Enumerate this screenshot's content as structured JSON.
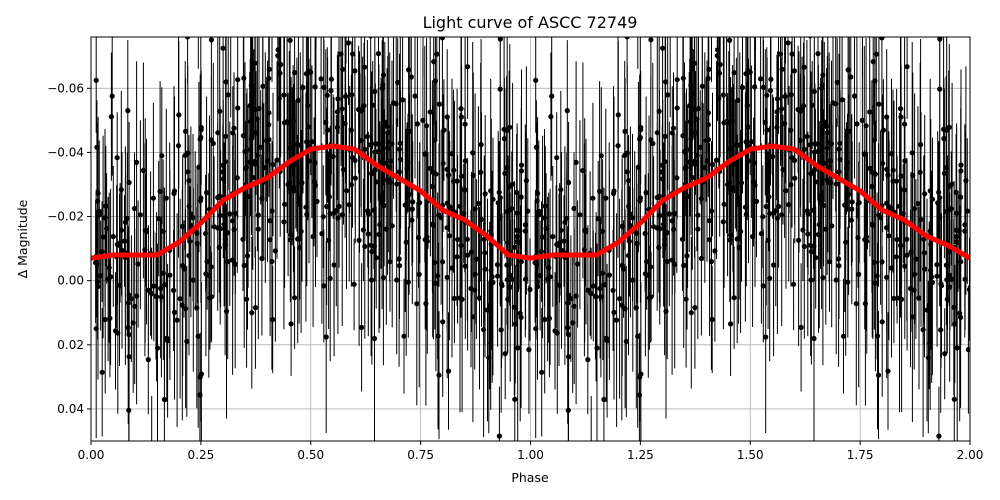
{
  "chart_data": {
    "type": "scatter",
    "title": "Light curve of ASCC 72749",
    "xlabel": "Phase",
    "ylabel": "Δ Magnitude",
    "xlim": [
      0.0,
      2.0
    ],
    "ylim": [
      0.05,
      -0.076
    ],
    "y_inverted": true,
    "grid": true,
    "x_ticks": [
      0.0,
      0.25,
      0.5,
      0.75,
      1.0,
      1.25,
      1.5,
      1.75,
      2.0
    ],
    "x_tick_labels": [
      "0.00",
      "0.25",
      "0.50",
      "0.75",
      "1.00",
      "1.25",
      "1.50",
      "1.75",
      "2.00"
    ],
    "y_ticks": [
      -0.06,
      -0.04,
      -0.02,
      0.0,
      0.02,
      0.04
    ],
    "y_tick_labels": [
      "−0.06",
      "−0.04",
      "−0.02",
      "0.00",
      "0.02",
      "0.04"
    ],
    "series": [
      {
        "kind": "scatter_errorbar",
        "color": "#000000",
        "points_per_cycle": 600,
        "point_scatter_std": 0.022,
        "errorbar_typical": 0.025
      },
      {
        "kind": "line",
        "color": "#ff0000",
        "x": [
          0.0,
          0.05,
          0.1,
          0.15,
          0.2,
          0.25,
          0.3,
          0.35,
          0.4,
          0.45,
          0.5,
          0.55,
          0.6,
          0.65,
          0.7,
          0.75,
          0.8,
          0.85,
          0.9,
          0.95,
          1.0,
          1.05,
          1.1,
          1.15,
          1.2,
          1.25,
          1.3,
          1.35,
          1.4,
          1.45,
          1.5,
          1.55,
          1.6,
          1.65,
          1.7,
          1.75,
          1.8,
          1.85,
          1.9,
          1.95,
          2.0
        ],
        "y": [
          -0.007,
          -0.008,
          -0.008,
          -0.008,
          -0.012,
          -0.018,
          -0.025,
          -0.029,
          -0.032,
          -0.037,
          -0.041,
          -0.042,
          -0.041,
          -0.036,
          -0.032,
          -0.028,
          -0.022,
          -0.019,
          -0.014,
          -0.008,
          -0.007,
          -0.008,
          -0.008,
          -0.008,
          -0.012,
          -0.018,
          -0.025,
          -0.029,
          -0.032,
          -0.037,
          -0.041,
          -0.042,
          -0.041,
          -0.036,
          -0.032,
          -0.028,
          -0.022,
          -0.019,
          -0.014,
          -0.011,
          -0.007
        ]
      }
    ]
  }
}
